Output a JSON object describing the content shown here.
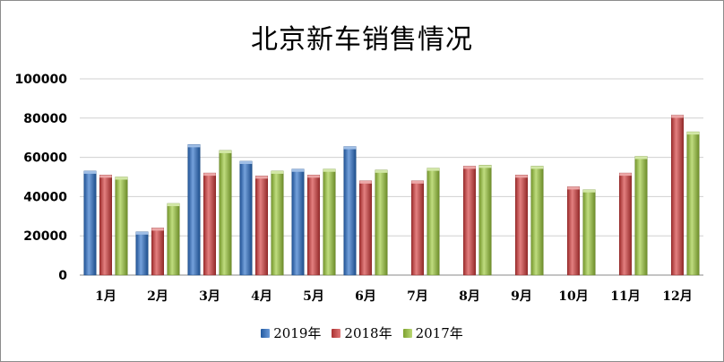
{
  "chart_data": {
    "type": "bar",
    "title": "北京新车销售情况",
    "xlabel": "",
    "ylabel": "",
    "ylim": [
      0,
      100000
    ],
    "yticks": [
      "0",
      "20000",
      "40000",
      "60000",
      "80000",
      "100000"
    ],
    "grid": true,
    "legend_position": "bottom",
    "categories": [
      "1月",
      "2月",
      "3月",
      "4月",
      "5月",
      "6月",
      "7月",
      "8月",
      "9月",
      "10月",
      "11月",
      "12月"
    ],
    "series": [
      {
        "name": "2019年",
        "color": "#2a6fc8",
        "values": [
          53000,
          22000,
          66500,
          58000,
          54000,
          65500,
          null,
          null,
          null,
          null,
          null,
          null
        ]
      },
      {
        "name": "2018年",
        "color": "#d43c3c",
        "values": [
          51000,
          24000,
          52000,
          50500,
          51000,
          48000,
          48000,
          55500,
          51000,
          45000,
          52000,
          81500
        ]
      },
      {
        "name": "2017年",
        "color": "#9cc93a",
        "values": [
          50000,
          36500,
          63500,
          53000,
          54000,
          53500,
          54500,
          56000,
          55500,
          43500,
          60500,
          73000
        ]
      }
    ]
  }
}
